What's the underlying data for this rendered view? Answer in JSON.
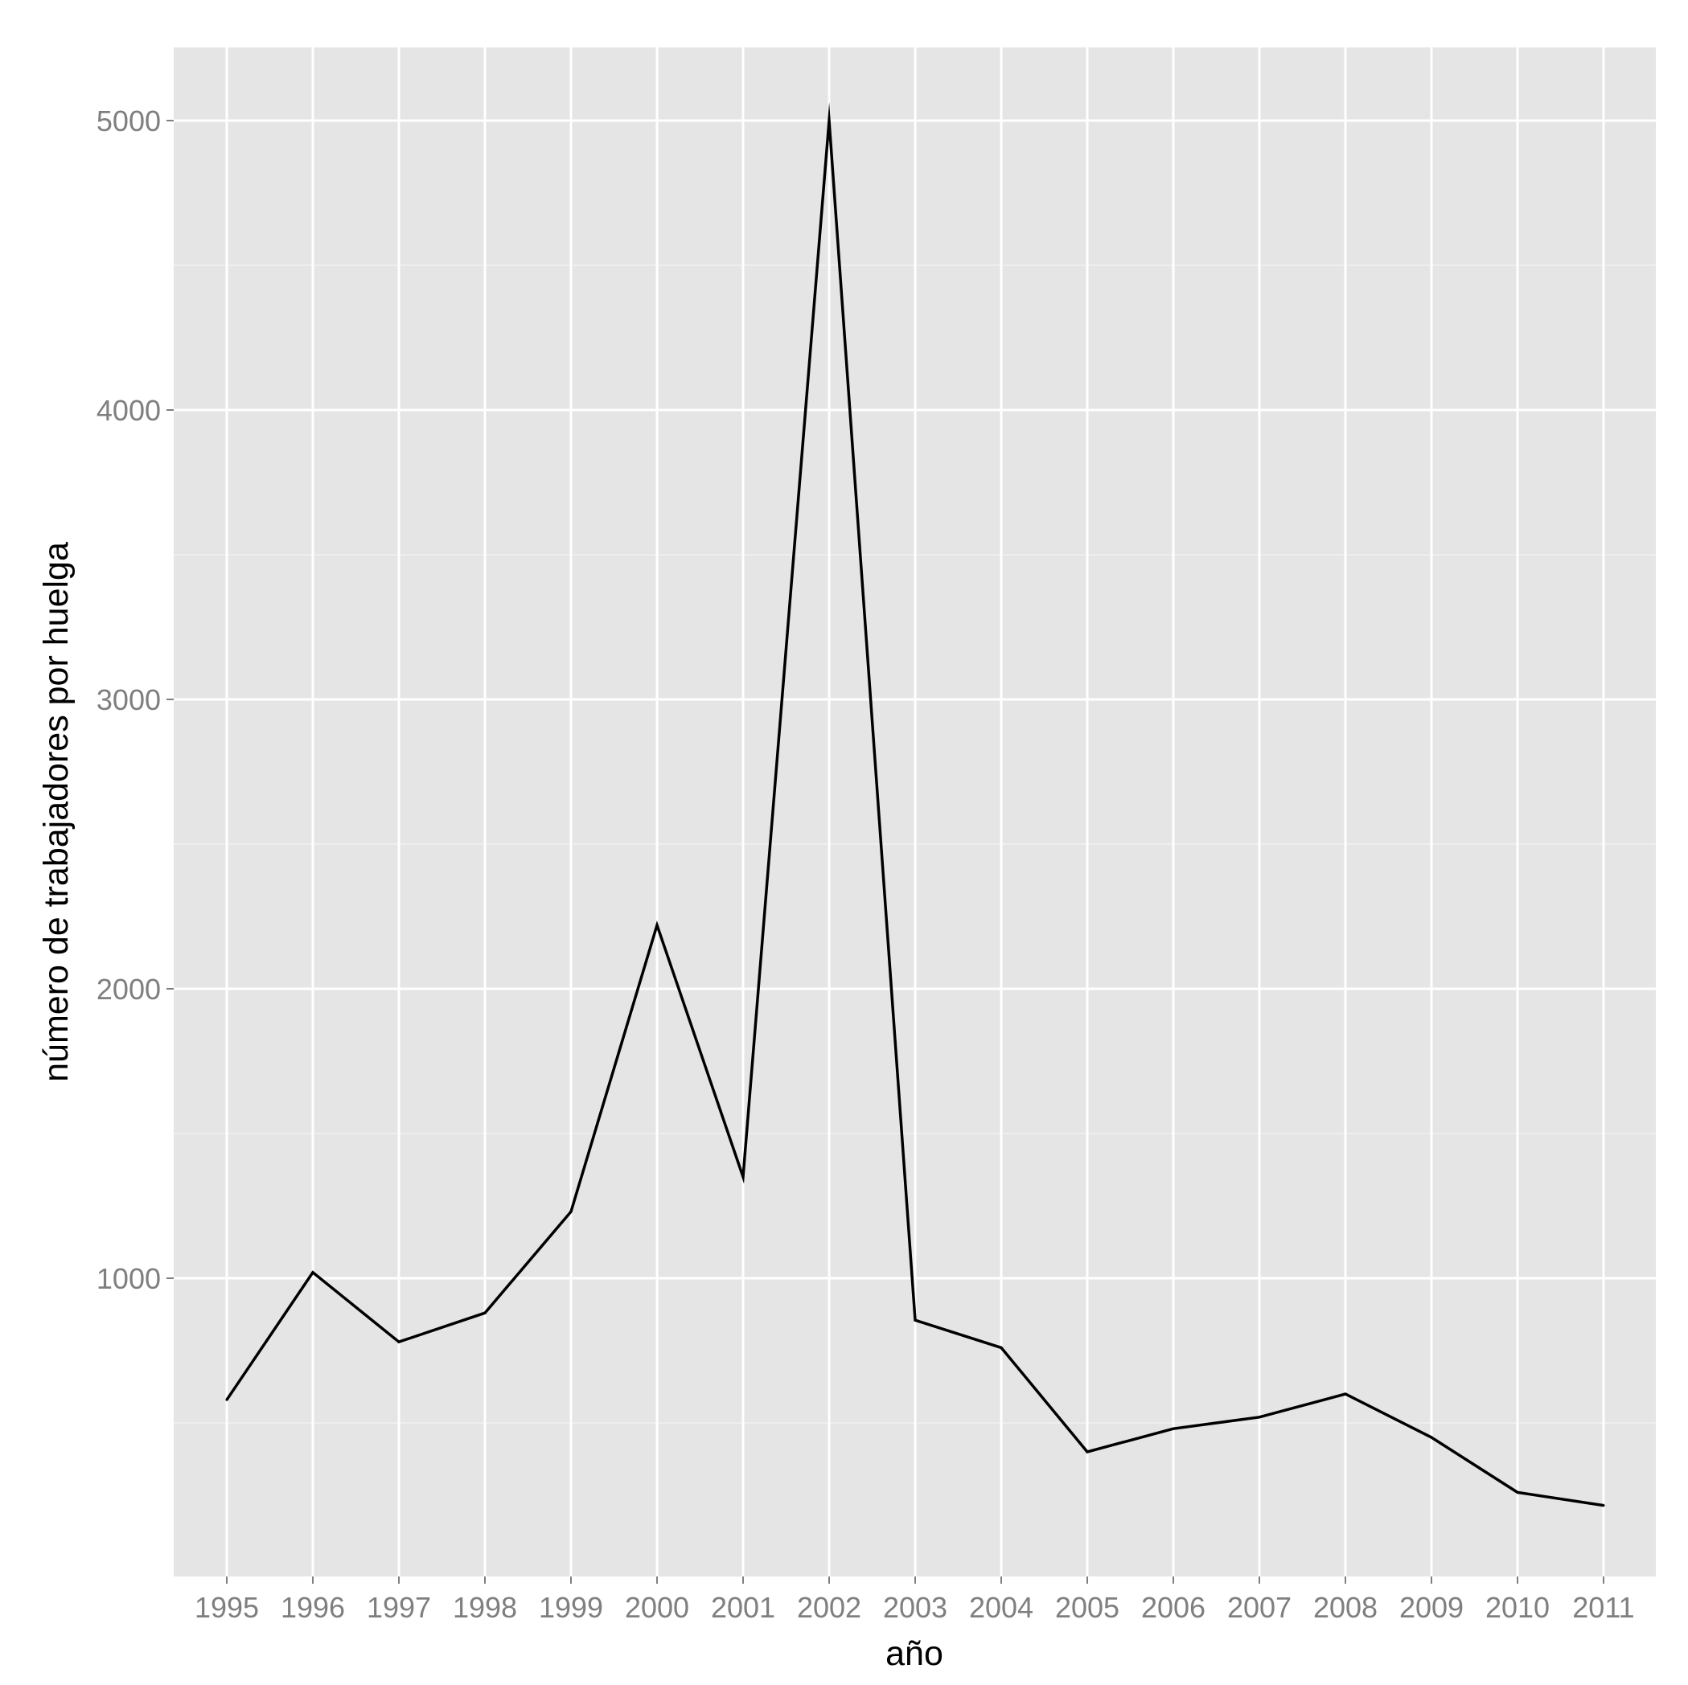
{
  "chart_data": {
    "type": "line",
    "title": "",
    "xlabel": "año",
    "ylabel": "número de trabajadores por huelga",
    "x": [
      "1995",
      "1996",
      "1997",
      "1998",
      "1999",
      "2000",
      "2001",
      "2002",
      "2003",
      "2004",
      "2005",
      "2006",
      "2007",
      "2008",
      "2009",
      "2010",
      "2011"
    ],
    "series": [
      {
        "values": [
          580,
          1020,
          780,
          880,
          1230,
          2220,
          1350,
          5000,
          855,
          760,
          400,
          480,
          520,
          600,
          450,
          260,
          215
        ]
      }
    ],
    "yticks": [
      1000,
      2000,
      3000,
      4000,
      5000
    ],
    "ylim": [
      -1000,
      5250
    ],
    "grid": true,
    "legend": "none",
    "colors": {
      "panel": "#e5e5e5",
      "grid_major": "#ffffff",
      "grid_minor": "#f2f2f2",
      "line": "#000000"
    }
  }
}
